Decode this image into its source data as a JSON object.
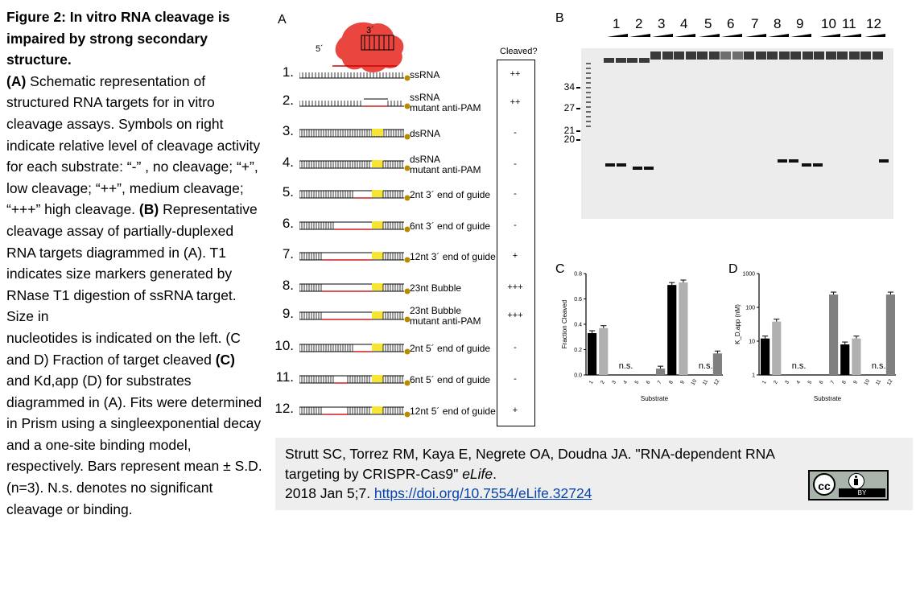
{
  "caption": {
    "title": "Figure 2: In vitro RNA cleavage is impaired by strong secondary structure.",
    "partA_label": "(A)",
    "partA_text": " Schematic representation of structured RNA targets for in vitro cleavage assays. Symbols on right indicate relative level of cleavage activity for each substrate: “-” , no cleavage; “+”, low cleavage; “++”, medium cleavage; “+++” high cleavage. ",
    "partB_label": "(B)",
    "partB_text": " Representative cleavage assay of partially-duplexed RNA targets diagrammed in (A). T1 indicates size markers generated by RNase T1 digestion of ssRNA target. Size in",
    "partB_text2": "nucleotides is indicated on the left. (C and D) Fraction of target cleaved ",
    "partC_label": "(C)",
    "partC_text": " and Kd,app (D) for substrates diagrammed in (A). Fits were determined in Prism using a singleexponential decay and a one-site binding model, respectively. Bars represent mean ± S.D. (n=3). N.s. denotes no significant cleavage or binding."
  },
  "panelA": {
    "letter": "A",
    "five_prime": "5´",
    "three_prime": "3´",
    "cleaved_header": "Cleaved?",
    "rows": [
      {
        "num": "1.",
        "label1": "ssRNA",
        "label2": "",
        "cleaved": "++"
      },
      {
        "num": "2.",
        "label1": "ssRNA",
        "label2": "mutant anti-PAM",
        "cleaved": "++"
      },
      {
        "num": "3.",
        "label1": "dsRNA",
        "label2": "",
        "cleaved": "-"
      },
      {
        "num": "4.",
        "label1": "dsRNA",
        "label2": "mutant anti-PAM",
        "cleaved": "-"
      },
      {
        "num": "5.",
        "label1": "2nt 3´ end of guide",
        "label2": "",
        "cleaved": "-"
      },
      {
        "num": "6.",
        "label1": "6nt 3´ end of guide",
        "label2": "",
        "cleaved": "-"
      },
      {
        "num": "7.",
        "label1": "12nt 3´ end of guide",
        "label2": "",
        "cleaved": "+"
      },
      {
        "num": "8.",
        "label1": "23nt Bubble",
        "label2": "",
        "cleaved": "+++"
      },
      {
        "num": "9.",
        "label1": "23nt Bubble",
        "label2": "mutant anti-PAM",
        "cleaved": "+++"
      },
      {
        "num": "10.",
        "label1": "2nt 5´ end of guide",
        "label2": "",
        "cleaved": "-"
      },
      {
        "num": "11.",
        "label1": "6nt 5´ end of guide",
        "label2": "",
        "cleaved": "-"
      },
      {
        "num": "12.",
        "label1": "12nt 5´ end of guide",
        "label2": "",
        "cleaved": "+"
      }
    ]
  },
  "panelB": {
    "letter": "B",
    "lanes": [
      "1",
      "2",
      "3",
      "4",
      "5",
      "6",
      "7",
      "8",
      "9",
      "10",
      "11",
      "12"
    ],
    "markers": [
      "34",
      "27",
      "21",
      "20"
    ]
  },
  "chart_data": [
    {
      "type": "bar",
      "panel": "C",
      "ylabel": "Fraction Cleaved",
      "xlabel": "Substrate",
      "categories": [
        "1",
        "2",
        "3",
        "4",
        "5",
        "6",
        "7",
        "8",
        "9",
        "10",
        "11",
        "12"
      ],
      "values": [
        0.33,
        0.37,
        0,
        0,
        0,
        0,
        0.05,
        0.71,
        0.73,
        0,
        0,
        0.17
      ],
      "errors": [
        0.02,
        0.02,
        0,
        0,
        0,
        0,
        0.005,
        0.02,
        0.01,
        0,
        0,
        0.01
      ],
      "ylim": [
        0.0,
        0.8
      ],
      "yticks": [
        "0.0",
        "0.2",
        "0.4",
        "0.6",
        "0.8"
      ],
      "annotations": [
        {
          "text": "n.s.",
          "at": "4"
        },
        {
          "text": "n.s.",
          "at": "11"
        }
      ],
      "colors": [
        "#000000",
        "#b0b0b0",
        "#000000",
        "#b0b0b0",
        "#000000",
        "#b0b0b0",
        "#808080",
        "#000000",
        "#b0b0b0",
        "#000000",
        "#b0b0b0",
        "#808080"
      ]
    },
    {
      "type": "bar",
      "panel": "D",
      "ylabel": "K_D,app (nM)",
      "xlabel": "Substrate",
      "scale": "log",
      "categories": [
        "1",
        "2",
        "3",
        "4",
        "5",
        "6",
        "7",
        "8",
        "9",
        "10",
        "11",
        "12"
      ],
      "values": [
        12,
        38,
        0,
        0,
        0,
        0,
        240,
        8,
        12,
        0,
        0,
        240
      ],
      "ylim": [
        1,
        1000
      ],
      "yticks": [
        "1",
        "10",
        "100",
        "1000"
      ],
      "annotations": [
        {
          "text": "n.s.",
          "at": "4"
        },
        {
          "text": "n.s.",
          "at": "11"
        }
      ],
      "colors": [
        "#000000",
        "#b0b0b0",
        "#000000",
        "#b0b0b0",
        "#000000",
        "#b0b0b0",
        "#808080",
        "#000000",
        "#b0b0b0",
        "#000000",
        "#b0b0b0",
        "#808080"
      ]
    }
  ],
  "panelC_letter": "C",
  "panelD_letter": "D",
  "ns": "n.s.",
  "citation": {
    "line1": "Strutt SC, Torrez RM, Kaya E, Negrete OA, Doudna JA. \"RNA-dependent RNA",
    "line2a": "targeting by CRISPR-Cas9\" ",
    "line2b": "eLife",
    "line2c": ".",
    "line3a": "2018 Jan 5;7. ",
    "link": "https://doi.org/10.7554/eLife.32724",
    "badge_cc": "cc",
    "badge_by": "BY"
  }
}
